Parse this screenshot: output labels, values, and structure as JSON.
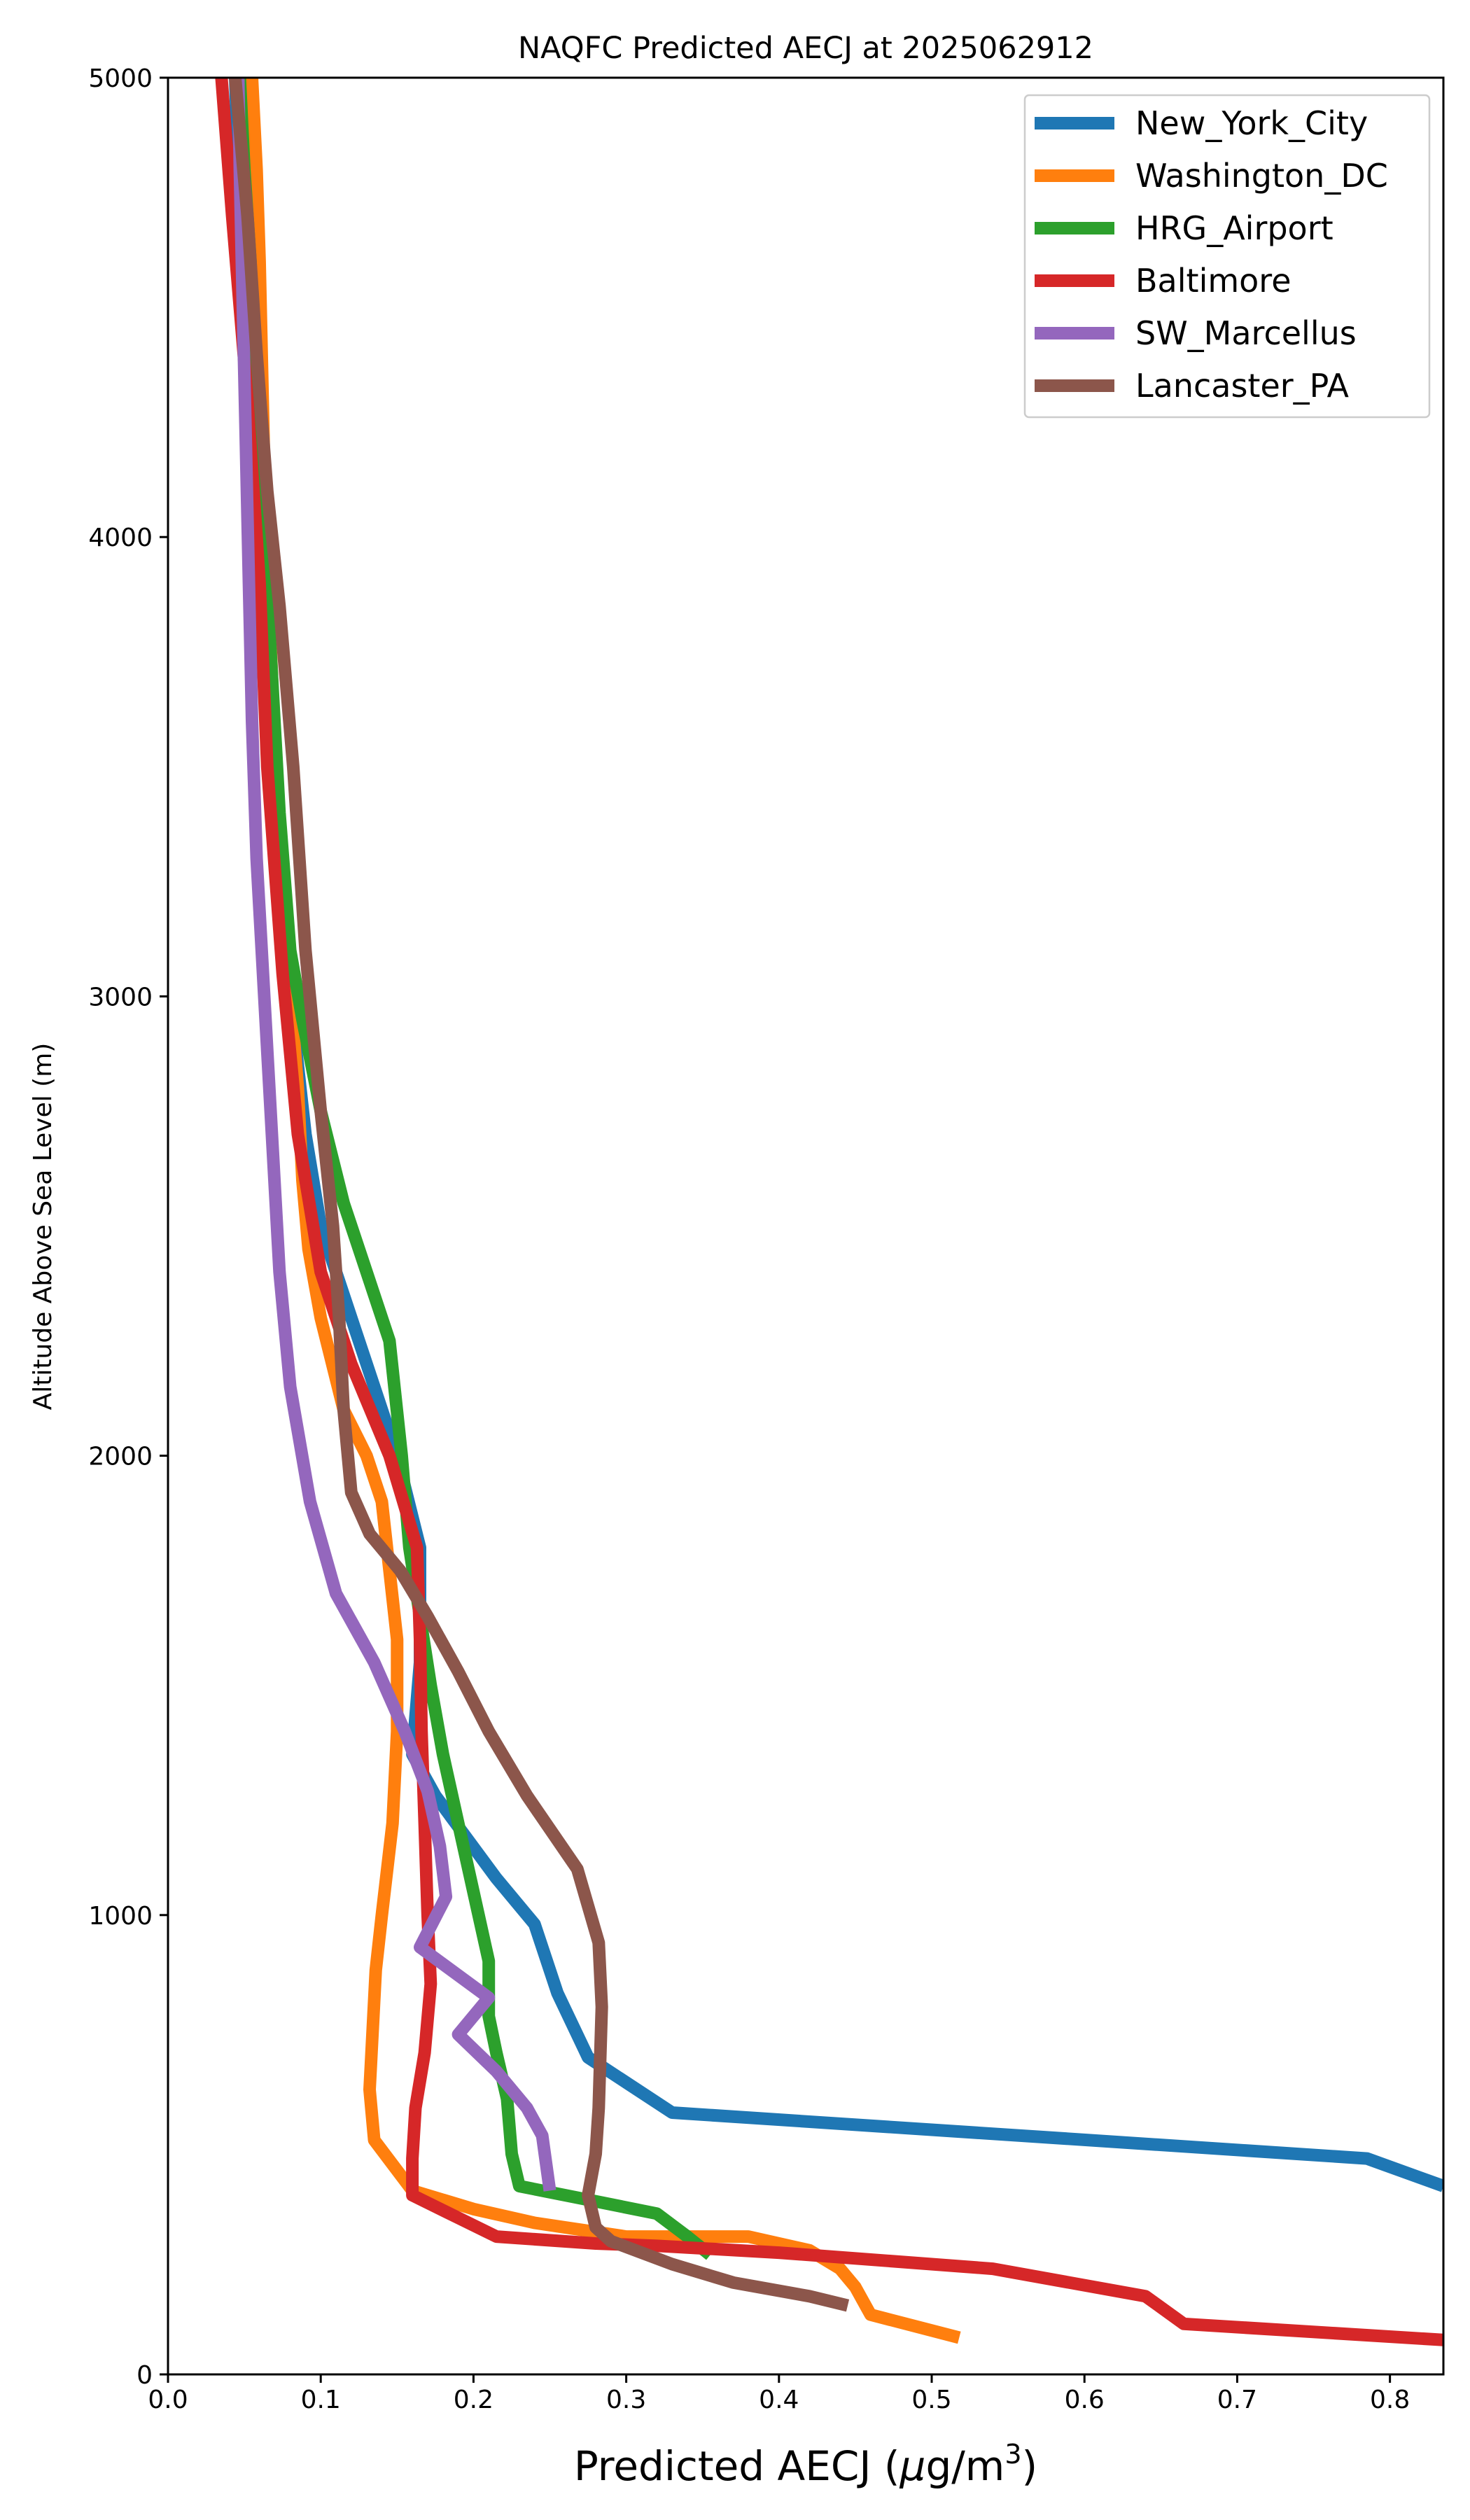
{
  "chart_data": {
    "type": "line",
    "title": "NAQFC Predicted AECJ at 2025062912",
    "xlabel_main": "Predicted AECJ (",
    "xlabel_mu": "μ",
    "xlabel_unit": "g/m",
    "xlabel_sup": "3",
    "xlabel_close": ")",
    "ylabel": "Altitude Above Sea Level (m)",
    "xlim": [
      0.0,
      0.835
    ],
    "ylim": [
      0,
      5000
    ],
    "xticks": [
      0.0,
      0.1,
      0.2,
      0.3,
      0.4,
      0.5,
      0.6,
      0.7,
      0.8
    ],
    "xtick_labels": [
      "0.0",
      "0.1",
      "0.2",
      "0.3",
      "0.4",
      "0.5",
      "0.6",
      "0.7",
      "0.8"
    ],
    "yticks": [
      0,
      1000,
      2000,
      3000,
      4000,
      5000
    ],
    "ytick_labels": [
      "0",
      "1000",
      "2000",
      "3000",
      "4000",
      "5000"
    ],
    "legend_position": "top-right",
    "grid": false,
    "series": [
      {
        "name": "New_York_City",
        "color": "#1f77b4",
        "points": [
          [
            0.835,
            410
          ],
          [
            0.785,
            470
          ],
          [
            0.33,
            570
          ],
          [
            0.275,
            690
          ],
          [
            0.255,
            830
          ],
          [
            0.24,
            980
          ],
          [
            0.215,
            1080
          ],
          [
            0.195,
            1170
          ],
          [
            0.175,
            1260
          ],
          [
            0.16,
            1350
          ],
          [
            0.165,
            1550
          ],
          [
            0.165,
            1800
          ],
          [
            0.15,
            2000
          ],
          [
            0.13,
            2200
          ],
          [
            0.115,
            2350
          ],
          [
            0.1,
            2500
          ],
          [
            0.09,
            2700
          ],
          [
            0.08,
            3000
          ],
          [
            0.072,
            3300
          ],
          [
            0.065,
            3600
          ],
          [
            0.06,
            3900
          ],
          [
            0.055,
            4200
          ],
          [
            0.05,
            4500
          ],
          [
            0.046,
            4800
          ],
          [
            0.044,
            5000
          ]
        ]
      },
      {
        "name": "Washington_DC",
        "color": "#ff7f0e",
        "points": [
          [
            0.518,
            80
          ],
          [
            0.46,
            130
          ],
          [
            0.45,
            190
          ],
          [
            0.44,
            230
          ],
          [
            0.42,
            270
          ],
          [
            0.38,
            300
          ],
          [
            0.3,
            300
          ],
          [
            0.24,
            330
          ],
          [
            0.2,
            360
          ],
          [
            0.16,
            400
          ],
          [
            0.135,
            510
          ],
          [
            0.132,
            620
          ],
          [
            0.136,
            880
          ],
          [
            0.14,
            1000
          ],
          [
            0.147,
            1200
          ],
          [
            0.15,
            1400
          ],
          [
            0.15,
            1600
          ],
          [
            0.145,
            1750
          ],
          [
            0.14,
            1900
          ],
          [
            0.13,
            2000
          ],
          [
            0.115,
            2100
          ],
          [
            0.1,
            2300
          ],
          [
            0.092,
            2450
          ],
          [
            0.088,
            2600
          ],
          [
            0.085,
            2800
          ],
          [
            0.078,
            3100
          ],
          [
            0.072,
            3400
          ],
          [
            0.068,
            3700
          ],
          [
            0.064,
            4000
          ],
          [
            0.062,
            4300
          ],
          [
            0.06,
            4600
          ],
          [
            0.058,
            4800
          ],
          [
            0.055,
            5000
          ]
        ]
      },
      {
        "name": "HRG_Airport",
        "color": "#2ca02c",
        "points": [
          [
            0.355,
            260
          ],
          [
            0.34,
            300
          ],
          [
            0.32,
            350
          ],
          [
            0.275,
            380
          ],
          [
            0.23,
            410
          ],
          [
            0.225,
            480
          ],
          [
            0.222,
            600
          ],
          [
            0.215,
            700
          ],
          [
            0.21,
            780
          ],
          [
            0.21,
            900
          ],
          [
            0.2,
            1050
          ],
          [
            0.19,
            1200
          ],
          [
            0.18,
            1350
          ],
          [
            0.172,
            1500
          ],
          [
            0.165,
            1650
          ],
          [
            0.158,
            1800
          ],
          [
            0.153,
            2000
          ],
          [
            0.145,
            2250
          ],
          [
            0.13,
            2400
          ],
          [
            0.115,
            2550
          ],
          [
            0.1,
            2750
          ],
          [
            0.088,
            2950
          ],
          [
            0.08,
            3100
          ],
          [
            0.073,
            3400
          ],
          [
            0.068,
            3700
          ],
          [
            0.063,
            4000
          ],
          [
            0.058,
            4300
          ],
          [
            0.054,
            4600
          ],
          [
            0.05,
            4800
          ],
          [
            0.047,
            5000
          ]
        ]
      },
      {
        "name": "Baltimore",
        "color": "#d62728",
        "points": [
          [
            0.835,
            75
          ],
          [
            0.665,
            110
          ],
          [
            0.64,
            170
          ],
          [
            0.54,
            230
          ],
          [
            0.4,
            265
          ],
          [
            0.32,
            280
          ],
          [
            0.28,
            285
          ],
          [
            0.215,
            300
          ],
          [
            0.16,
            390
          ],
          [
            0.16,
            470
          ],
          [
            0.162,
            580
          ],
          [
            0.168,
            700
          ],
          [
            0.172,
            850
          ],
          [
            0.17,
            1000
          ],
          [
            0.168,
            1200
          ],
          [
            0.166,
            1400
          ],
          [
            0.165,
            1600
          ],
          [
            0.163,
            1800
          ],
          [
            0.145,
            2000
          ],
          [
            0.12,
            2200
          ],
          [
            0.1,
            2400
          ],
          [
            0.085,
            2700
          ],
          [
            0.075,
            3050
          ],
          [
            0.065,
            3500
          ],
          [
            0.06,
            3900
          ],
          [
            0.052,
            4300
          ],
          [
            0.042,
            4700
          ],
          [
            0.035,
            5000
          ]
        ]
      },
      {
        "name": "SW_Marcellus",
        "color": "#9467bd",
        "points": [
          [
            0.25,
            400
          ],
          [
            0.245,
            520
          ],
          [
            0.235,
            580
          ],
          [
            0.215,
            660
          ],
          [
            0.19,
            740
          ],
          [
            0.21,
            820
          ],
          [
            0.165,
            930
          ],
          [
            0.182,
            1040
          ],
          [
            0.178,
            1150
          ],
          [
            0.17,
            1270
          ],
          [
            0.155,
            1400
          ],
          [
            0.135,
            1550
          ],
          [
            0.11,
            1700
          ],
          [
            0.093,
            1900
          ],
          [
            0.08,
            2150
          ],
          [
            0.073,
            2400
          ],
          [
            0.068,
            2700
          ],
          [
            0.063,
            3000
          ],
          [
            0.058,
            3300
          ],
          [
            0.055,
            3600
          ],
          [
            0.053,
            3900
          ],
          [
            0.051,
            4200
          ],
          [
            0.049,
            4500
          ],
          [
            0.047,
            4800
          ],
          [
            0.046,
            5000
          ]
        ]
      },
      {
        "name": "Lancaster_PA",
        "color": "#8c564b",
        "points": [
          [
            0.445,
            150
          ],
          [
            0.42,
            170
          ],
          [
            0.37,
            200
          ],
          [
            0.33,
            240
          ],
          [
            0.29,
            290
          ],
          [
            0.28,
            320
          ],
          [
            0.275,
            390
          ],
          [
            0.28,
            480
          ],
          [
            0.282,
            580
          ],
          [
            0.284,
            800
          ],
          [
            0.282,
            940
          ],
          [
            0.268,
            1100
          ],
          [
            0.235,
            1260
          ],
          [
            0.21,
            1400
          ],
          [
            0.19,
            1530
          ],
          [
            0.17,
            1650
          ],
          [
            0.152,
            1750
          ],
          [
            0.132,
            1830
          ],
          [
            0.12,
            1920
          ],
          [
            0.115,
            2100
          ],
          [
            0.112,
            2300
          ],
          [
            0.108,
            2500
          ],
          [
            0.1,
            2750
          ],
          [
            0.09,
            3100
          ],
          [
            0.082,
            3500
          ],
          [
            0.073,
            3850
          ],
          [
            0.065,
            4100
          ],
          [
            0.058,
            4400
          ],
          [
            0.052,
            4700
          ],
          [
            0.048,
            4850
          ],
          [
            0.044,
            5000
          ]
        ]
      }
    ]
  }
}
